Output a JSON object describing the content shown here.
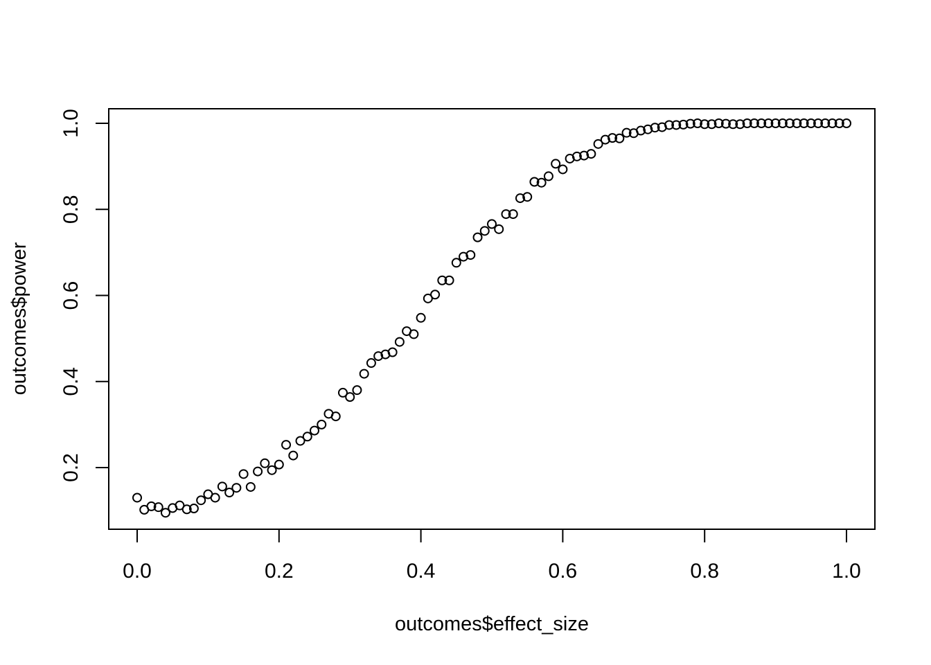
{
  "chart_data": {
    "type": "scatter",
    "title": "",
    "xlabel": "outcomes$effect_size",
    "ylabel": "outcomes$power",
    "xlim": [
      0,
      1
    ],
    "ylim": [
      0.1,
      1.0
    ],
    "x_ticks": [
      "0.0",
      "0.2",
      "0.4",
      "0.6",
      "0.8",
      "1.0"
    ],
    "y_ticks": [
      "0.2",
      "0.4",
      "0.6",
      "0.8",
      "1.0"
    ],
    "grid": false,
    "marker": "open-circle",
    "x": [
      0.0,
      0.01,
      0.02,
      0.03,
      0.04,
      0.05,
      0.06,
      0.07,
      0.08,
      0.09,
      0.1,
      0.11,
      0.12,
      0.13,
      0.14,
      0.15,
      0.16,
      0.17,
      0.18,
      0.19,
      0.2,
      0.21,
      0.22,
      0.23,
      0.24,
      0.25,
      0.26,
      0.27,
      0.28,
      0.29,
      0.3,
      0.31,
      0.32,
      0.33,
      0.34,
      0.35,
      0.36,
      0.37,
      0.38,
      0.39,
      0.4,
      0.41,
      0.42,
      0.43,
      0.44,
      0.45,
      0.46,
      0.47,
      0.48,
      0.49,
      0.5,
      0.51,
      0.52,
      0.53,
      0.54,
      0.55,
      0.56,
      0.57,
      0.58,
      0.59,
      0.6,
      0.61,
      0.62,
      0.63,
      0.64,
      0.65,
      0.66,
      0.67,
      0.68,
      0.69,
      0.7,
      0.71,
      0.72,
      0.73,
      0.74,
      0.75,
      0.76,
      0.77,
      0.78,
      0.79,
      0.8,
      0.81,
      0.82,
      0.83,
      0.84,
      0.85,
      0.86,
      0.87,
      0.88,
      0.89,
      0.9,
      0.91,
      0.92,
      0.93,
      0.94,
      0.95,
      0.96,
      0.97,
      0.98,
      0.99,
      1.0
    ],
    "y": [
      0.13,
      0.102,
      0.11,
      0.108,
      0.095,
      0.106,
      0.112,
      0.103,
      0.105,
      0.124,
      0.138,
      0.13,
      0.156,
      0.142,
      0.153,
      0.185,
      0.155,
      0.191,
      0.21,
      0.194,
      0.207,
      0.253,
      0.228,
      0.262,
      0.272,
      0.286,
      0.3,
      0.325,
      0.319,
      0.374,
      0.364,
      0.38,
      0.418,
      0.443,
      0.459,
      0.463,
      0.468,
      0.492,
      0.517,
      0.51,
      0.548,
      0.593,
      0.602,
      0.635,
      0.635,
      0.676,
      0.69,
      0.694,
      0.735,
      0.75,
      0.766,
      0.754,
      0.789,
      0.789,
      0.826,
      0.829,
      0.864,
      0.862,
      0.877,
      0.906,
      0.893,
      0.918,
      0.923,
      0.925,
      0.929,
      0.952,
      0.962,
      0.966,
      0.965,
      0.978,
      0.977,
      0.983,
      0.986,
      0.99,
      0.991,
      0.996,
      0.996,
      0.997,
      0.999,
      1.0,
      0.998,
      0.998,
      1.0,
      0.999,
      0.998,
      0.998,
      1.0,
      1.0,
      1.0,
      1.0,
      1.0,
      1.0,
      1.0,
      1.0,
      1.0,
      1.0,
      1.0,
      1.0,
      1.0,
      1.0,
      1.0
    ]
  }
}
